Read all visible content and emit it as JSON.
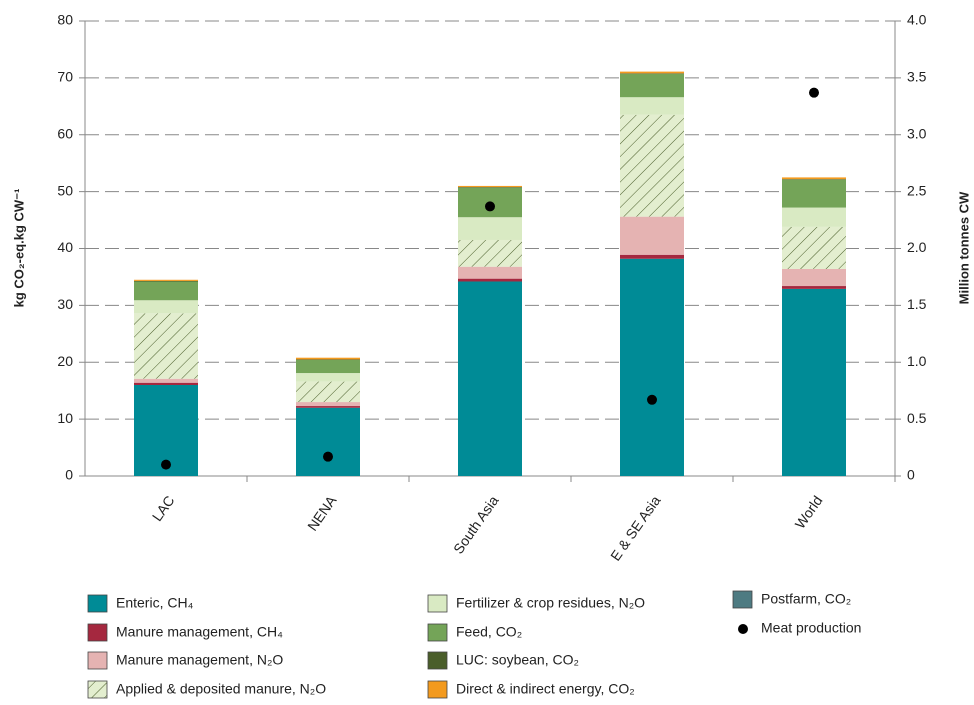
{
  "chart_data": {
    "type": "bar",
    "stacked": true,
    "categories": [
      "LAC",
      "NENA",
      "South Asia",
      "E & SE Asia",
      "World"
    ],
    "ylabel": "kg CO₂-eq.kg CW⁻¹",
    "y2label": "Million tonnes CW",
    "ylim": [
      0,
      80
    ],
    "yticks": [
      0,
      10,
      20,
      30,
      40,
      50,
      60,
      70,
      80
    ],
    "y2lim": [
      0,
      4
    ],
    "y2ticks": [
      0,
      0.5,
      {
        "value": 1,
        "label": "1.0"
      },
      1.5,
      {
        "value": 2,
        "label": "2.0"
      },
      2.5,
      {
        "value": 3,
        "label": "3.0"
      },
      3.5,
      {
        "value": 4,
        "label": "4.0"
      }
    ],
    "grid": true,
    "series": [
      {
        "name": "Enteric, CH₄",
        "color": "#008b96",
        "values": [
          16,
          12,
          34.2,
          38.2,
          32.9
        ]
      },
      {
        "name": "Manure management, CH₄",
        "color": "#a5283f",
        "values": [
          0.4,
          0.3,
          0.5,
          0.7,
          0.5
        ]
      },
      {
        "name": "Manure management, N₂O",
        "color": "#e5b3b2",
        "values": [
          0.7,
          0.7,
          2.1,
          6.7,
          3.0
        ]
      },
      {
        "name": "Applied & deposited manure, N₂O",
        "color": "#e3eecf",
        "hatch": true,
        "values": [
          11.5,
          3.6,
          4.7,
          17.9,
          7.4
        ]
      },
      {
        "name": "Fertilizer & crop residues, N₂O",
        "color": "#d9eac3",
        "values": [
          2.3,
          1.5,
          4.0,
          3.1,
          3.4
        ]
      },
      {
        "name": "Feed, CO₂",
        "color": "#74a458",
        "values": [
          3.3,
          2.3,
          5.2,
          4.1,
          4.9
        ]
      },
      {
        "name": "LUC: soybean, CO₂",
        "color": "#4a5e2a",
        "values": [
          0.1,
          0.1,
          0.1,
          0.1,
          0.1
        ]
      },
      {
        "name": "Direct & indirect energy, CO₂",
        "color": "#f39a1e",
        "values": [
          0.2,
          0.3,
          0.2,
          0.3,
          0.3
        ]
      },
      {
        "name": "Postfarm, CO₂",
        "color": "#4e7b82",
        "values": [
          0,
          0,
          0,
          0,
          0
        ]
      },
      {
        "name": "Meat production",
        "color": "#000000",
        "axis": "y2",
        "values": [
          0.1,
          0.17,
          2.37,
          0.67,
          3.37
        ]
      }
    ]
  }
}
